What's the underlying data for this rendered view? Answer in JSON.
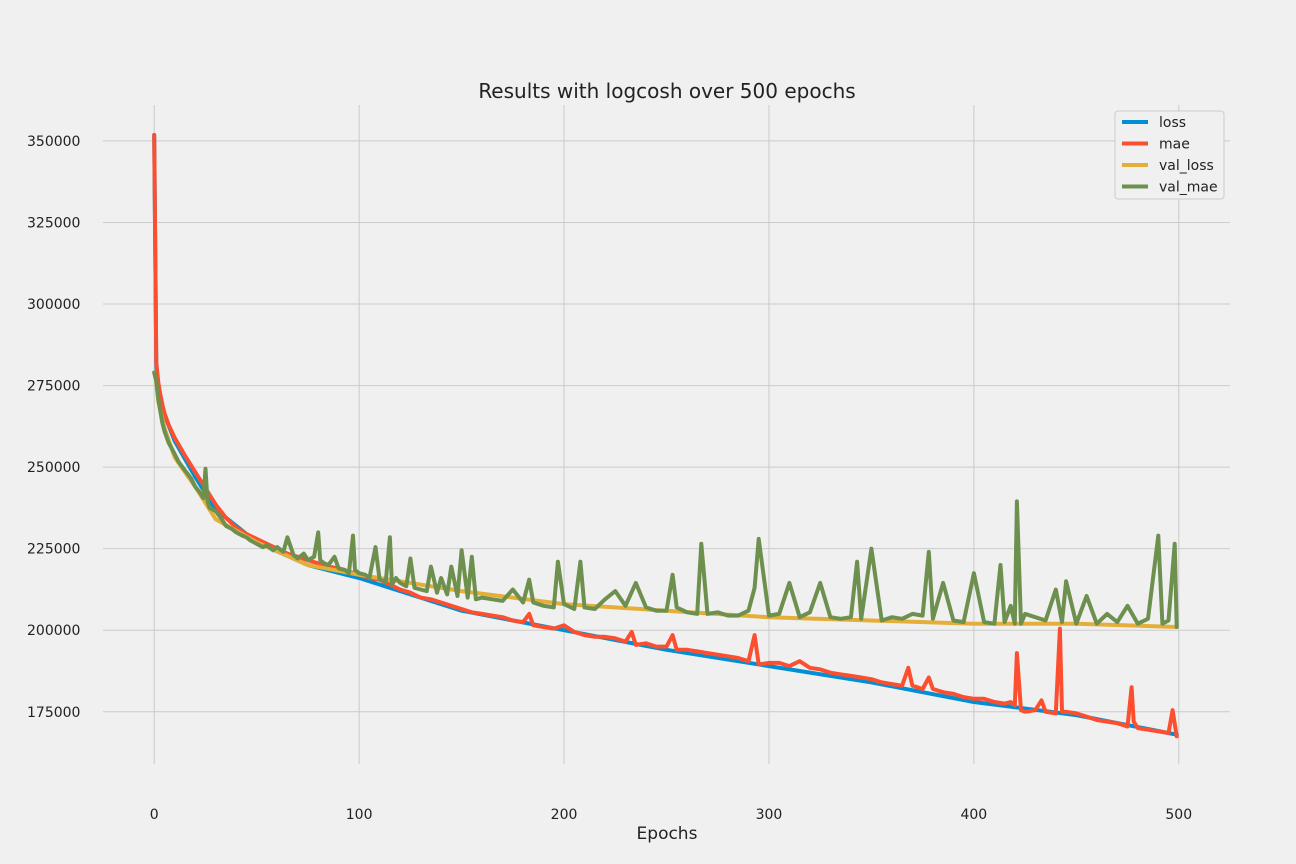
{
  "chart_data": {
    "type": "line",
    "title": "Results with logcosh over 500 epochs",
    "xlabel": "Epochs",
    "ylabel": "",
    "xlim": [
      -25,
      525
    ],
    "ylim": [
      159000,
      361000
    ],
    "x_ticks": [
      0,
      100,
      200,
      300,
      400,
      500
    ],
    "y_ticks": [
      175000,
      200000,
      225000,
      250000,
      275000,
      300000,
      325000,
      350000
    ],
    "x_tick_labels": [
      "0",
      "100",
      "200",
      "300",
      "400",
      "500"
    ],
    "y_tick_labels": [
      "175000",
      "200000",
      "225000",
      "250000",
      "275000",
      "300000",
      "325000",
      "350000"
    ],
    "grid": true,
    "legend_position": "top-right",
    "series": [
      {
        "name": "loss",
        "color": "#008fd5",
        "x": [
          0,
          1,
          2,
          5,
          10,
          20,
          30,
          50,
          75,
          100,
          150,
          200,
          250,
          300,
          350,
          400,
          450,
          499
        ],
        "values": [
          351800,
          281000,
          275000,
          266000,
          258000,
          247000,
          237000,
          227000,
          220000,
          216000,
          206000,
          200000,
          194000,
          189000,
          184000,
          178000,
          174000,
          168000
        ]
      },
      {
        "name": "mae",
        "color": "#fc4f30",
        "x": [
          0,
          1,
          2,
          3,
          4,
          5,
          7,
          10,
          15,
          20,
          25,
          30,
          35,
          40,
          45,
          50,
          55,
          60,
          65,
          70,
          75,
          80,
          85,
          90,
          95,
          100,
          105,
          110,
          115,
          120,
          125,
          130,
          135,
          140,
          145,
          150,
          155,
          160,
          165,
          170,
          175,
          180,
          183,
          185,
          190,
          195,
          200,
          205,
          210,
          215,
          220,
          225,
          230,
          233,
          235,
          240,
          245,
          250,
          253,
          255,
          260,
          265,
          270,
          275,
          280,
          285,
          290,
          293,
          295,
          300,
          305,
          310,
          315,
          320,
          325,
          330,
          335,
          340,
          345,
          350,
          355,
          360,
          365,
          368,
          370,
          375,
          378,
          380,
          385,
          390,
          395,
          400,
          405,
          410,
          415,
          418,
          420,
          421,
          423,
          425,
          430,
          433,
          435,
          440,
          442,
          443,
          445,
          450,
          455,
          460,
          465,
          470,
          475,
          477,
          478,
          480,
          485,
          490,
          495,
          497,
          499
        ],
        "values": [
          351800,
          282000,
          276000,
          272000,
          269000,
          266500,
          263000,
          259000,
          253500,
          248500,
          243500,
          238500,
          234500,
          231500,
          229500,
          228000,
          226500,
          225000,
          223500,
          222500,
          221500,
          220500,
          219500,
          219000,
          218000,
          217000,
          216000,
          215500,
          214000,
          212500,
          211500,
          210000,
          209500,
          208500,
          207500,
          206500,
          205500,
          205000,
          204500,
          204000,
          203000,
          202500,
          205000,
          201500,
          201000,
          200500,
          201500,
          199500,
          198500,
          198000,
          198000,
          197500,
          196500,
          199500,
          195500,
          196000,
          195000,
          195000,
          198500,
          194000,
          194000,
          193500,
          193000,
          192500,
          192000,
          191500,
          190500,
          198500,
          189500,
          190000,
          190000,
          189000,
          190500,
          188500,
          188000,
          187000,
          186500,
          186000,
          185500,
          185000,
          184000,
          183500,
          183000,
          188500,
          183000,
          182000,
          185500,
          182000,
          181000,
          180500,
          179500,
          179000,
          179000,
          178000,
          177500,
          178000,
          177000,
          193000,
          175500,
          175000,
          175500,
          178500,
          175000,
          174500,
          200500,
          175000,
          175000,
          174500,
          173500,
          172500,
          172000,
          171500,
          170500,
          182500,
          172000,
          170000,
          169500,
          169000,
          168500,
          175500,
          167500
        ]
      },
      {
        "name": "val_loss",
        "color": "#e5ae38",
        "x": [
          0,
          1,
          2,
          5,
          10,
          20,
          30,
          50,
          75,
          100,
          150,
          200,
          250,
          300,
          350,
          400,
          450,
          499
        ],
        "values": [
          279000,
          276000,
          270000,
          262000,
          253000,
          244000,
          234000,
          227000,
          220000,
          217000,
          212000,
          208000,
          206000,
          204000,
          203000,
          202000,
          202000,
          201000
        ]
      },
      {
        "name": "val_mae",
        "color": "#6d904f",
        "x": [
          0,
          1,
          2,
          3,
          4,
          5,
          7,
          10,
          12,
          15,
          18,
          20,
          22,
          24,
          25,
          26,
          27,
          30,
          33,
          35,
          38,
          40,
          43,
          45,
          47,
          50,
          53,
          55,
          58,
          60,
          63,
          65,
          68,
          70,
          73,
          75,
          78,
          80,
          81,
          83,
          85,
          88,
          90,
          93,
          95,
          97,
          98,
          100,
          103,
          105,
          108,
          110,
          113,
          115,
          116,
          118,
          120,
          123,
          125,
          127,
          130,
          133,
          135,
          138,
          140,
          143,
          145,
          148,
          150,
          153,
          155,
          157,
          160,
          165,
          170,
          175,
          180,
          183,
          185,
          190,
          195,
          197,
          200,
          205,
          208,
          210,
          215,
          220,
          225,
          230,
          235,
          240,
          245,
          250,
          253,
          255,
          260,
          265,
          267,
          270,
          275,
          280,
          285,
          290,
          293,
          295,
          300,
          305,
          310,
          315,
          320,
          325,
          330,
          335,
          340,
          343,
          345,
          350,
          355,
          360,
          365,
          370,
          375,
          378,
          380,
          385,
          390,
          395,
          400,
          405,
          410,
          413,
          415,
          418,
          420,
          421,
          423,
          425,
          430,
          435,
          440,
          443,
          445,
          450,
          455,
          460,
          465,
          470,
          475,
          480,
          485,
          490,
          492,
          495,
          498,
          499
        ],
        "values": [
          279000,
          276500,
          271000,
          267000,
          263500,
          261000,
          257500,
          254000,
          251500,
          249000,
          246500,
          244000,
          242500,
          240500,
          249500,
          239500,
          237500,
          236500,
          234000,
          232000,
          231000,
          230000,
          229000,
          228500,
          227500,
          226500,
          225500,
          226000,
          224500,
          225500,
          224000,
          228500,
          223000,
          222000,
          223500,
          221500,
          222500,
          230000,
          221500,
          220500,
          220000,
          222500,
          219000,
          218500,
          217500,
          229000,
          218500,
          217500,
          217000,
          216000,
          225500,
          215500,
          215000,
          228500,
          214000,
          216000,
          214500,
          213500,
          222000,
          213000,
          212500,
          212000,
          219500,
          211500,
          216000,
          211000,
          219500,
          210500,
          224500,
          210000,
          222500,
          209500,
          210000,
          209500,
          209000,
          212500,
          208500,
          215500,
          208500,
          207500,
          207000,
          221000,
          208000,
          206500,
          221000,
          207000,
          206500,
          209500,
          212000,
          207500,
          214500,
          207000,
          206000,
          206000,
          217000,
          207000,
          205500,
          205000,
          226500,
          205000,
          205500,
          204500,
          204500,
          206000,
          213000,
          228000,
          204500,
          205000,
          214500,
          204000,
          205500,
          214500,
          204000,
          203500,
          204000,
          221000,
          203500,
          225000,
          203000,
          204000,
          203500,
          205000,
          204500,
          224000,
          203500,
          214500,
          203000,
          202500,
          217500,
          202500,
          202000,
          220000,
          202500,
          207500,
          202000,
          239500,
          202000,
          205000,
          204000,
          203000,
          212500,
          202500,
          215000,
          202000,
          210500,
          202000,
          205000,
          202500,
          207500,
          202000,
          203500,
          229000,
          202000,
          203000,
          226500,
          201000
        ]
      }
    ]
  }
}
